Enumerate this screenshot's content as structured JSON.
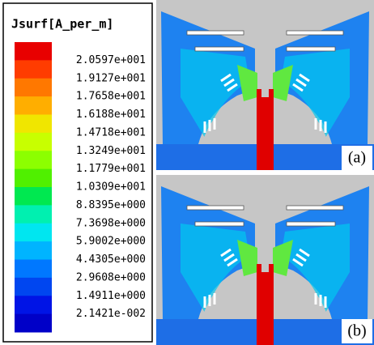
{
  "legend": {
    "title": "Jsurf[A_per_m]",
    "labels": [
      "2.0597e+001",
      "1.9127e+001",
      "1.7658e+001",
      "1.6188e+001",
      "1.4718e+001",
      "1.3249e+001",
      "1.1779e+001",
      "1.0309e+001",
      "8.8395e+000",
      "7.3698e+000",
      "5.9002e+000",
      "4.4305e+000",
      "2.9608e+000",
      "1.4911e+000",
      "2.1421e-002"
    ],
    "colors": [
      "#e80000",
      "#ff3c00",
      "#ff7800",
      "#ffae00",
      "#f0e600",
      "#c8ff00",
      "#8cff00",
      "#50f000",
      "#00e850",
      "#00f0b0",
      "#00e6f0",
      "#00b4ff",
      "#0078ff",
      "#0046f0",
      "#0014e6",
      "#0000c8"
    ]
  },
  "panels": [
    {
      "label": "(a)"
    },
    {
      "label": "(b)"
    }
  ]
}
